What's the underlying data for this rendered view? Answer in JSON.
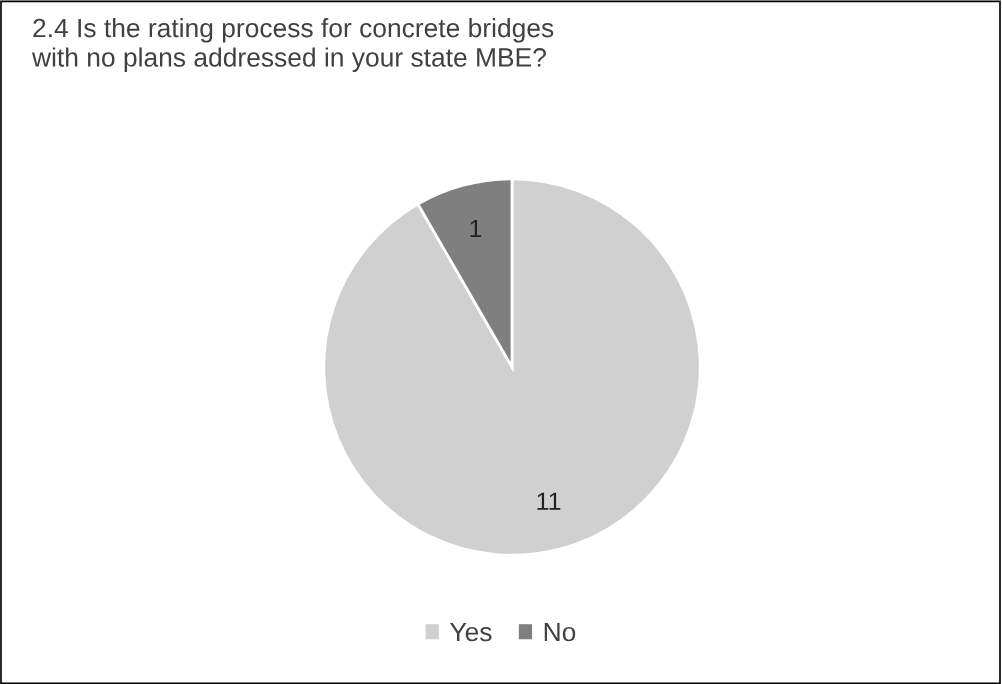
{
  "chart_data": {
    "type": "pie",
    "title": "2.4 Is the rating process for concrete bridges\nwith no plans addressed in your state MBE?",
    "categories": [
      "Yes",
      "No"
    ],
    "values": [
      11,
      1
    ],
    "colors": [
      "#d0d0d0",
      "#7f7f7f"
    ],
    "data_labels": true,
    "legend": "bottom"
  }
}
